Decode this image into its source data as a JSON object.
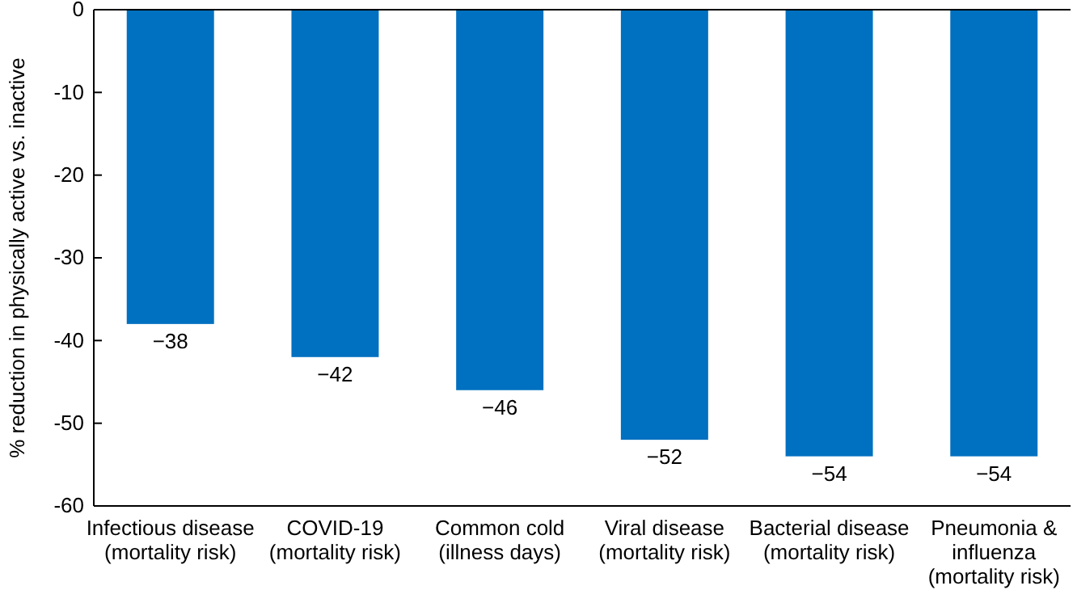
{
  "chart_data": {
    "type": "bar",
    "ylabel": "% reduction in physically active vs. inactive",
    "categories": [
      "Infectious disease\n(mortality risk)",
      "COVID-19\n(mortality risk)",
      "Common cold\n(illness days)",
      "Viral disease\n(mortality risk)",
      "Bacterial disease\n(mortality risk)",
      "Pneumonia &\ninfluenza\n(mortality risk)"
    ],
    "values": [
      -38,
      -42,
      -46,
      -52,
      -54,
      -54
    ],
    "value_labels": [
      "−38",
      "−42",
      "−46",
      "−52",
      "−54",
      "−54"
    ],
    "color": "#0070c0",
    "ylim": [
      -60,
      0
    ],
    "yticks": [
      0,
      -10,
      -20,
      -30,
      -40,
      -50,
      -60
    ],
    "grid": false
  }
}
